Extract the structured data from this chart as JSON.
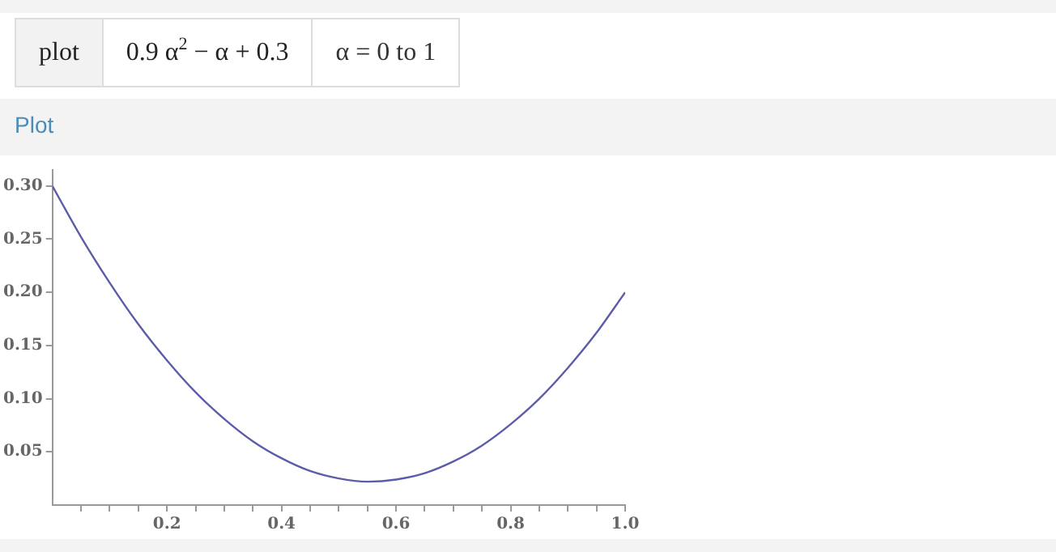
{
  "chart_data": {
    "type": "line",
    "title": "Plot",
    "annotations": [
      "plot",
      "0.9 α$^{2}$ − α + 0.3",
      "α = 0 to 1"
    ],
    "x": [
      0,
      0.05,
      0.1,
      0.15,
      0.2,
      0.25,
      0.3,
      0.35,
      0.4,
      0.45,
      0.5,
      0.55,
      0.6,
      0.65,
      0.7,
      0.75,
      0.8,
      0.85,
      0.9,
      0.95,
      1
    ],
    "series": [
      {
        "color": "#5c5ca8",
        "values": [
          0.3,
          0.252,
          0.209,
          0.17,
          0.136,
          0.106,
          0.081,
          0.06,
          0.044,
          0.032,
          0.025,
          0.022,
          0.024,
          0.03,
          0.041,
          0.056,
          0.076,
          0.1,
          0.129,
          0.162,
          0.2
        ]
      }
    ],
    "xlim": [
      0,
      1
    ],
    "ylim": [
      0,
      0.315
    ],
    "xticks": [
      {
        "value": 0.05,
        "label": null
      },
      {
        "value": 0.1,
        "label": null
      },
      {
        "value": 0.15,
        "label": null
      },
      0.2,
      {
        "value": 0.25,
        "label": null
      },
      {
        "value": 0.3,
        "label": null
      },
      {
        "value": 0.35,
        "label": null
      },
      0.4,
      {
        "value": 0.45,
        "label": null
      },
      {
        "value": 0.5,
        "label": null
      },
      {
        "value": 0.55,
        "label": null
      },
      0.6,
      {
        "value": 0.65,
        "label": null
      },
      {
        "value": 0.7,
        "label": null
      },
      {
        "value": 0.75,
        "label": null
      },
      0.8,
      {
        "value": 0.85,
        "label": null
      },
      {
        "value": 0.9,
        "label": null
      },
      {
        "value": 0.95,
        "label": null
      },
      {
        "value": 1,
        "label": "1.0"
      }
    ],
    "yticks": [
      0.05,
      {
        "value": 0.1,
        "label": "0.10"
      },
      0.15,
      {
        "value": 0.2,
        "label": "0.20"
      },
      0.25,
      {
        "value": 0.3,
        "label": "0.30"
      }
    ],
    "grid": false,
    "legend": false,
    "marker": "none",
    "line_style": "solid"
  }
}
